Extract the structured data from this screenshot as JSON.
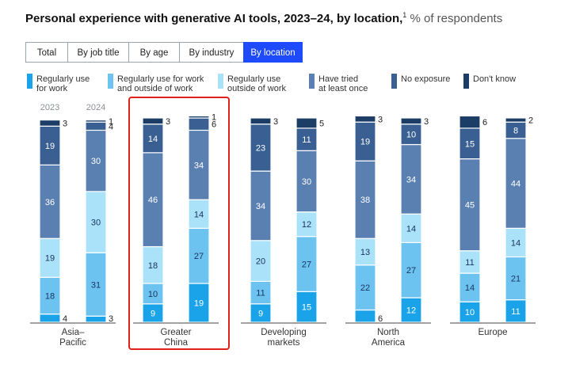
{
  "title": {
    "bold": "Personal experience with generative AI tools, 2023–24, by location,",
    "superscript": "1",
    "unit": " % of respondents"
  },
  "tabs": [
    {
      "label": "Total",
      "active": false
    },
    {
      "label": "By job title",
      "active": false
    },
    {
      "label": "By age",
      "active": false
    },
    {
      "label": "By industry",
      "active": false
    },
    {
      "label": "By location",
      "active": true
    }
  ],
  "highlight_color": "#e0201b",
  "chart_data": {
    "type": "bar",
    "stacked": true,
    "years": [
      "2023",
      "2024"
    ],
    "legend": [
      {
        "name": "Regularly use\nfor work",
        "color": "#1aa3e8"
      },
      {
        "name": "Regularly use for work\nand outside of work",
        "color": "#6cc3f0"
      },
      {
        "name": "Regularly use\noutside of work",
        "color": "#a9e2f9"
      },
      {
        "name": "Have tried\nat least once",
        "color": "#5a80b2"
      },
      {
        "name": "No exposure",
        "color": "#3a5f92"
      },
      {
        "name": "Don't know",
        "color": "#1c3e66"
      }
    ],
    "categories": [
      {
        "label": "Asia–\nPacific",
        "2023": [
          4,
          18,
          19,
          36,
          19,
          3
        ],
        "2024": [
          3,
          31,
          30,
          30,
          4,
          1
        ]
      },
      {
        "label": "Greater\nChina",
        "highlighted": true,
        "2023": [
          9,
          10,
          18,
          46,
          14,
          3
        ],
        "2024": [
          19,
          27,
          14,
          34,
          6,
          1
        ]
      },
      {
        "label": "Developing\nmarkets",
        "2023": [
          9,
          11,
          20,
          34,
          23,
          3
        ],
        "2024": [
          15,
          27,
          12,
          30,
          11,
          5
        ]
      },
      {
        "label": "North\nAmerica",
        "2023": [
          6,
          22,
          13,
          38,
          19,
          3
        ],
        "2024": [
          12,
          27,
          14,
          34,
          10,
          3
        ]
      },
      {
        "label": "Europe",
        "2023": [
          10,
          14,
          11,
          45,
          15,
          6
        ],
        "2024": [
          11,
          21,
          14,
          44,
          8,
          2
        ]
      }
    ]
  }
}
